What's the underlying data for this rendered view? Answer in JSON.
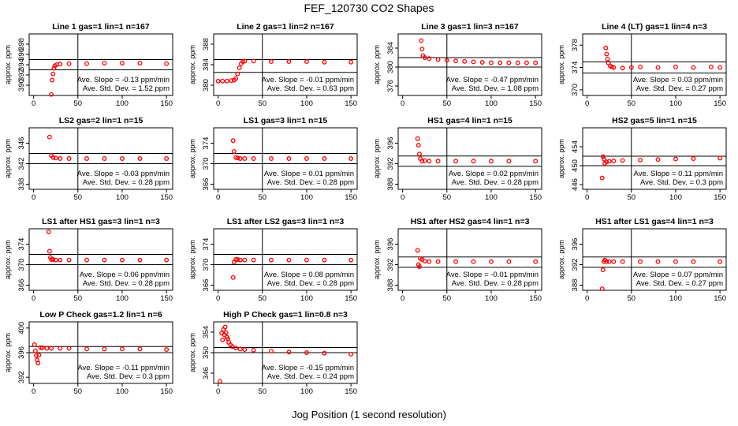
{
  "figure": {
    "title": "FEF_120730  CO2 Shapes",
    "xlabel": "Jog Position (1 second resolution)",
    "colors": {
      "points": "#ff0000",
      "axes": "#000000"
    }
  },
  "chart_data": [
    {
      "type": "scatter",
      "title": "Line 1 gas=1 lin=1 n=167",
      "ylabel": "approx. ppm",
      "xlim": [
        -5,
        157
      ],
      "ylim": [
        388,
        400
      ],
      "yticks": [
        390,
        392,
        394,
        396,
        398
      ],
      "xticks": [
        0,
        50,
        100,
        150
      ],
      "hlines": [
        393,
        395
      ],
      "vline": 50,
      "slope_text": "Ave. Slope = -0.13  ppm/min",
      "std_text": "Ave. Std. Dev. = 1.52  ppm",
      "x": [
        20,
        21,
        22,
        23,
        24,
        26,
        30,
        40,
        60,
        80,
        100,
        120,
        150
      ],
      "y": [
        388.2,
        391,
        392.2,
        393.3,
        393.8,
        394.0,
        394.1,
        394.2,
        394.2,
        394.3,
        394.3,
        394.3,
        394.2
      ]
    },
    {
      "type": "scatter",
      "title": "Line 2 gas=1 lin=2 n=167",
      "ylabel": "approx. ppm",
      "xlim": [
        -5,
        157
      ],
      "ylim": [
        378,
        390
      ],
      "yticks": [
        380,
        384,
        388
      ],
      "xticks": [
        0,
        50,
        100,
        150
      ],
      "hlines": [
        382.5,
        385
      ],
      "vline": 50,
      "slope_text": "Ave. Slope = -0.01  ppm/min",
      "std_text": "Ave. Std. Dev. = 0.63  ppm",
      "x": [
        0,
        5,
        10,
        15,
        18,
        20,
        22,
        24,
        26,
        28,
        30,
        40,
        60,
        80,
        100,
        120,
        150
      ],
      "y": [
        380.8,
        380.8,
        380.8,
        380.9,
        381,
        381.3,
        382.2,
        383.4,
        384.2,
        384.6,
        384.7,
        384.7,
        384.6,
        384.6,
        384.6,
        384.5,
        384.5
      ]
    },
    {
      "type": "scatter",
      "title": "Line 3 gas=1 lin=3 n=167",
      "ylabel": "approx. ppm",
      "xlim": [
        -5,
        157
      ],
      "ylim": [
        374,
        387
      ],
      "yticks": [
        376,
        380,
        384
      ],
      "xticks": [
        0,
        50,
        100,
        150
      ],
      "hlines": [
        380,
        382
      ],
      "vline": 50,
      "slope_text": "Ave. Slope = -0.47  ppm/min",
      "std_text": "Ave. Std. Dev. = 1.08  ppm",
      "x": [
        21,
        22,
        23,
        25,
        30,
        40,
        50,
        60,
        70,
        80,
        90,
        100,
        110,
        120,
        130,
        140,
        150
      ],
      "y": [
        385.6,
        383.8,
        382.4,
        382.0,
        381.8,
        381.6,
        381.4,
        381.3,
        381.2,
        381.1,
        381.0,
        380.9,
        380.9,
        380.9,
        380.9,
        380.9,
        380.9
      ]
    },
    {
      "type": "scatter",
      "title": "Line 4 (LT) gas=1 lin=4 n=3",
      "ylabel": "approx. ppm",
      "xlim": [
        -5,
        157
      ],
      "ylim": [
        369,
        380
      ],
      "yticks": [
        370,
        374,
        378
      ],
      "xticks": [
        0,
        50,
        100,
        150
      ],
      "hlines": [
        373,
        375
      ],
      "vline": 50,
      "slope_text": "Ave. Slope = 0.03  ppm/min",
      "std_text": "Ave. Std. Dev. = 0.27  ppm",
      "x": [
        21,
        22,
        23,
        24,
        26,
        28,
        30,
        40,
        50,
        60,
        80,
        100,
        120,
        140,
        150
      ],
      "y": [
        377.5,
        376.4,
        375.5,
        374.8,
        374.3,
        374.1,
        374.0,
        373.9,
        374.0,
        374.1,
        374.0,
        374.1,
        374.0,
        374.1,
        374.0
      ]
    },
    {
      "type": "scatter",
      "title": "LS2 gas=2 lin=1 n=15",
      "ylabel": "approx. ppm",
      "xlim": [
        -5,
        157
      ],
      "ylim": [
        337,
        349
      ],
      "yticks": [
        338,
        342,
        346
      ],
      "xticks": [
        0,
        50,
        100,
        150
      ],
      "hlines": [
        342,
        344
      ],
      "vline": 50,
      "slope_text": "Ave. Slope = -0.03  ppm/min",
      "std_text": "Ave. Std. Dev. = 0.28  ppm",
      "x": [
        18,
        20,
        22,
        25,
        30,
        40,
        60,
        80,
        100,
        120,
        150
      ],
      "y": [
        347.2,
        343.6,
        343.2,
        343.1,
        343.0,
        343.0,
        343.0,
        343.0,
        343.0,
        343.0,
        343.0
      ]
    },
    {
      "type": "scatter",
      "title": "LS1 gas=3 lin=1 n=15",
      "ylabel": "approx. ppm",
      "xlim": [
        -5,
        157
      ],
      "ylim": [
        365,
        377
      ],
      "yticks": [
        366,
        370,
        374
      ],
      "xticks": [
        0,
        50,
        100,
        150
      ],
      "hlines": [
        370,
        372
      ],
      "vline": 50,
      "slope_text": "Ave. Slope = 0.01  ppm/min",
      "std_text": "Ave. Std. Dev. = 0.28  ppm",
      "x": [
        17,
        18,
        20,
        22,
        25,
        30,
        40,
        60,
        80,
        100,
        120,
        150
      ],
      "y": [
        374.5,
        372.4,
        371.2,
        371.1,
        371.0,
        371.0,
        371.0,
        371.0,
        371.0,
        371.0,
        371.0,
        371.0
      ]
    },
    {
      "type": "scatter",
      "title": "HS1 gas=4 lin=1 n=15",
      "ylabel": "approx. ppm",
      "xlim": [
        -5,
        157
      ],
      "ylim": [
        387,
        399
      ],
      "yticks": [
        388,
        392,
        396
      ],
      "xticks": [
        0,
        50,
        100,
        150
      ],
      "hlines": [
        391.5,
        393.5
      ],
      "vline": 50,
      "slope_text": "Ave. Slope = 0.02  ppm/min",
      "std_text": "Ave. Std. Dev. = 0.28  ppm",
      "x": [
        17,
        18,
        19,
        20,
        22,
        25,
        30,
        40,
        60,
        80,
        100,
        120,
        150
      ],
      "y": [
        396.9,
        395.6,
        393.9,
        393.0,
        392.5,
        392.6,
        392.5,
        392.5,
        392.5,
        392.5,
        392.5,
        392.5,
        392.5
      ]
    },
    {
      "type": "scatter",
      "title": "HS2 gas=5 lin=1 n=15",
      "ylabel": "approx. ppm",
      "xlim": [
        -5,
        157
      ],
      "ylim": [
        445,
        458
      ],
      "yticks": [
        446,
        450,
        454
      ],
      "xticks": [
        0,
        50,
        100,
        150
      ],
      "hlines": [
        450,
        452
      ],
      "vline": 50,
      "slope_text": "Ave. Slope = 0.11  ppm/min",
      "std_text": "Ave. Std. Dev. = 0.3  ppm",
      "x": [
        17,
        18,
        19,
        20,
        22,
        25,
        30,
        40,
        60,
        80,
        100,
        120,
        150
      ],
      "y": [
        447.4,
        451.9,
        451.4,
        450.5,
        450.8,
        450.9,
        451.0,
        451.1,
        451.2,
        451.3,
        451.4,
        451.5,
        451.6
      ]
    },
    {
      "type": "scatter",
      "title": "LS1 after HS1 gas=3 lin=1 n=3",
      "ylabel": "approx. ppm",
      "xlim": [
        -5,
        157
      ],
      "ylim": [
        365,
        377
      ],
      "yticks": [
        366,
        370,
        374
      ],
      "xticks": [
        0,
        50,
        100,
        150
      ],
      "hlines": [
        370,
        372
      ],
      "vline": 50,
      "slope_text": "Ave. Slope = 0.06  ppm/min",
      "std_text": "Ave. Std. Dev. = 0.28  ppm",
      "x": [
        17,
        18,
        19,
        20,
        22,
        25,
        30,
        40,
        60,
        80,
        100,
        120,
        150
      ],
      "y": [
        376.4,
        372.6,
        371.4,
        371.0,
        371.0,
        370.9,
        370.9,
        370.9,
        370.9,
        370.9,
        370.9,
        370.9,
        370.9
      ]
    },
    {
      "type": "scatter",
      "title": "LS1 after LS2 gas=3 lin=1 n=3",
      "ylabel": "approx. ppm",
      "xlim": [
        -5,
        157
      ],
      "ylim": [
        365,
        377
      ],
      "yticks": [
        366,
        370,
        374
      ],
      "xticks": [
        0,
        50,
        100,
        150
      ],
      "hlines": [
        370,
        372
      ],
      "vline": 50,
      "slope_text": "Ave. Slope = 0.08  ppm/min",
      "std_text": "Ave. Std. Dev. = 0.28  ppm",
      "x": [
        17,
        18,
        20,
        22,
        25,
        30,
        40,
        60,
        80,
        100,
        120,
        150
      ],
      "y": [
        367.5,
        370.5,
        371.0,
        371.0,
        370.9,
        370.9,
        370.9,
        370.9,
        370.9,
        370.9,
        370.9,
        370.9
      ]
    },
    {
      "type": "scatter",
      "title": "HS1 after HS2 gas=4 lin=1 n=3",
      "ylabel": "approx. ppm",
      "xlim": [
        -5,
        157
      ],
      "ylim": [
        387,
        399
      ],
      "yticks": [
        388,
        392,
        396
      ],
      "xticks": [
        0,
        50,
        100,
        150
      ],
      "hlines": [
        391.5,
        393.5
      ],
      "vline": 50,
      "slope_text": "Ave. Slope = -0.01  ppm/min",
      "std_text": "Ave. Std. Dev. = 0.28  ppm",
      "x": [
        17,
        18,
        19,
        20,
        22,
        25,
        30,
        40,
        60,
        80,
        100,
        120,
        150
      ],
      "y": [
        394.8,
        392.0,
        391.6,
        393.2,
        393.0,
        392.7,
        392.6,
        392.6,
        392.6,
        392.6,
        392.6,
        392.6,
        392.6
      ]
    },
    {
      "type": "scatter",
      "title": "HS1 after LS1 gas=4 lin=1 n=3",
      "ylabel": "approx. ppm",
      "xlim": [
        -5,
        157
      ],
      "ylim": [
        387,
        399
      ],
      "yticks": [
        388,
        392,
        396
      ],
      "xticks": [
        0,
        50,
        100,
        150
      ],
      "hlines": [
        391.5,
        393.5
      ],
      "vline": 50,
      "slope_text": "Ave. Slope = 0.07  ppm/min",
      "std_text": "Ave. Std. Dev. = 0.27  ppm",
      "x": [
        17,
        18,
        19,
        20,
        22,
        25,
        30,
        40,
        60,
        80,
        100,
        120,
        150
      ],
      "y": [
        387.3,
        391.0,
        392.6,
        392.9,
        392.6,
        392.6,
        392.6,
        392.6,
        392.6,
        392.6,
        392.6,
        392.6,
        392.6
      ]
    },
    {
      "type": "scatter",
      "title": "Low P Check gas=1.2 lin=1 n=6",
      "ylabel": "approx. ppm",
      "xlim": [
        -5,
        157
      ],
      "ylim": [
        391,
        401
      ],
      "yticks": [
        392,
        396,
        400
      ],
      "xticks": [
        0,
        50,
        100,
        150
      ],
      "hlines": [
        396,
        397
      ],
      "vline": 50,
      "slope_text": "Ave. Slope = -0.11  ppm/min",
      "std_text": "Ave. Std. Dev. = 0.3  ppm",
      "x": [
        1,
        2,
        3,
        4,
        5,
        6,
        8,
        10,
        15,
        20,
        30,
        40,
        60,
        80,
        100,
        120,
        150
      ],
      "y": [
        397.3,
        396.3,
        395.5,
        394.8,
        394.3,
        395.6,
        396.8,
        396.8,
        396.7,
        396.7,
        396.7,
        396.7,
        396.6,
        396.6,
        396.6,
        396.6,
        396.5
      ]
    },
    {
      "type": "scatter",
      "title": "High P Check gas=1 lin=0.8 n=3",
      "ylabel": "approx. ppm",
      "xlim": [
        -5,
        157
      ],
      "ylim": [
        344,
        356
      ],
      "yticks": [
        346,
        350,
        354
      ],
      "xticks": [
        0,
        50,
        100,
        150
      ],
      "hlines": [
        350,
        351
      ],
      "vline": 50,
      "slope_text": "Ave. Slope = -0.15  ppm/min",
      "std_text": "Ave. Std. Dev. = 0.24  ppm",
      "x": [
        2,
        4,
        5,
        6,
        7,
        8,
        9,
        10,
        11,
        12,
        14,
        16,
        20,
        25,
        30,
        40,
        60,
        80,
        100,
        120,
        150
      ],
      "y": [
        344.4,
        353.8,
        352.5,
        354.5,
        353.5,
        355.0,
        353.9,
        353.0,
        352.7,
        352.0,
        351.5,
        351.2,
        350.9,
        350.7,
        350.6,
        350.5,
        350.3,
        350.1,
        350.0,
        349.9,
        349.7
      ]
    }
  ]
}
